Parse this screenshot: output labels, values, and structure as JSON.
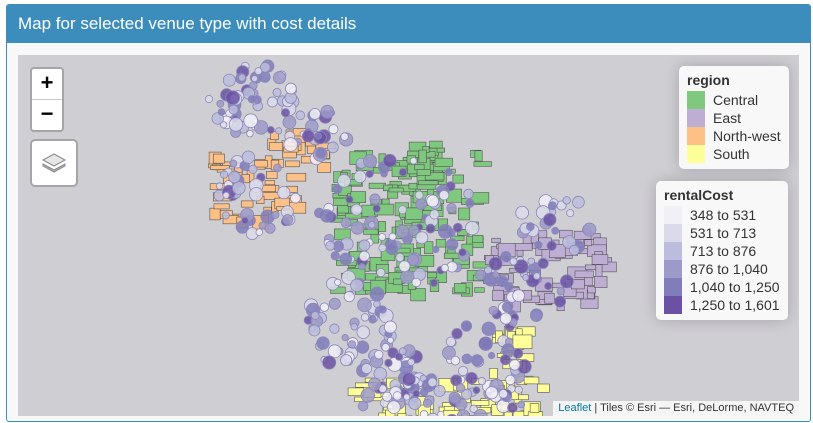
{
  "panel": {
    "title": "Map for selected venue type with cost details"
  },
  "zoom": {
    "in": "+",
    "out": "−"
  },
  "legends": {
    "region": {
      "title": "region",
      "items": [
        {
          "label": "Central",
          "color": "#7fc97f"
        },
        {
          "label": "East",
          "color": "#beaed4"
        },
        {
          "label": "North-west",
          "color": "#fdc086"
        },
        {
          "label": "South",
          "color": "#ffff99"
        }
      ]
    },
    "rental": {
      "title": "rentalCost",
      "items": [
        {
          "label": "348 to 531",
          "color": "#f2f0f7"
        },
        {
          "label": "531 to 713",
          "color": "#dadaeb"
        },
        {
          "label": "713 to 876",
          "color": "#bcbddc"
        },
        {
          "label": "876 to 1,040",
          "color": "#9e9ac8"
        },
        {
          "label": "1,040 to 1,250",
          "color": "#807dba"
        },
        {
          "label": "1,250 to 1,601",
          "color": "#6a51a3"
        }
      ]
    }
  },
  "attribution": {
    "link": "Leaflet",
    "text": " | Tiles © Esri — Esri, DeLorme, NAVTEQ"
  }
}
